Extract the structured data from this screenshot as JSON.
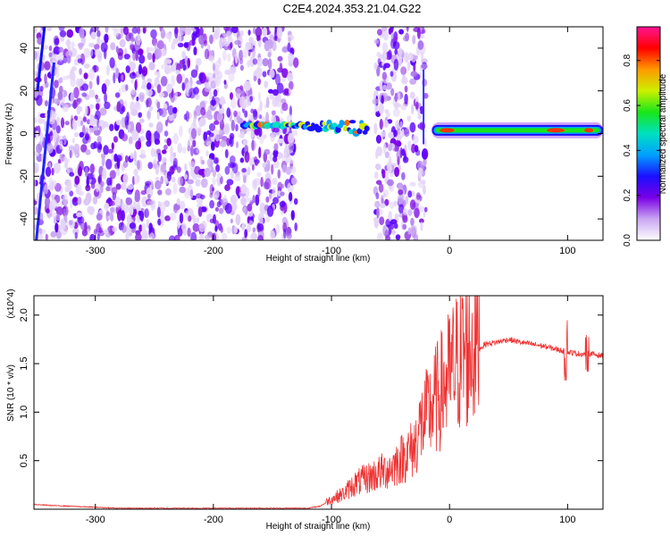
{
  "title": "C2E4.2024.353.21.04.G22",
  "chart_data": [
    {
      "type": "heatmap",
      "xlabel": "Height of straight line (km)",
      "ylabel": "Frequency (Hz)",
      "colorbar_label": "Normalized spectral amplitude",
      "xlim": [
        -352,
        130
      ],
      "ylim": [
        -50,
        50
      ],
      "clim": [
        0,
        0.95
      ],
      "x_ticks": [
        -300,
        -200,
        -100,
        0,
        100
      ],
      "x_tick_labels": [
        "-300",
        "-200",
        "-100",
        "0",
        "100"
      ],
      "y_ticks": [
        -40,
        -20,
        0,
        20,
        40
      ],
      "y_tick_labels": [
        "-40",
        "-20",
        "0",
        "20",
        "40"
      ],
      "colorbar_ticks": [
        0.0,
        0.2,
        0.4,
        0.6,
        0.8
      ],
      "colorbar_tick_labels": [
        "0.0",
        "0.2",
        "0.4",
        "0.6",
        "0.8"
      ],
      "colormap": [
        "#ffffff",
        "#c9a6f2",
        "#7a00e6",
        "#1a10ff",
        "#00a0ff",
        "#00e0c0",
        "#19e619",
        "#ccf000",
        "#ff9900",
        "#ff0000",
        "#ff1493"
      ],
      "noise_regions": [
        [
          -352,
          -130
        ],
        [
          -63,
          -20
        ]
      ],
      "tone_segments": [
        {
          "x": [
            -175,
            -70
          ],
          "freq": 4,
          "amplitude": 0.45
        },
        {
          "x": [
            -15,
            130
          ],
          "freq": 1.5,
          "amplitude": 0.6
        }
      ]
    },
    {
      "type": "line",
      "xlabel": "Height of straight line (km)",
      "ylabel": "SNR (10 * v/v)",
      "y_scale_note": "(x10^4)",
      "xlim": [
        -352,
        130
      ],
      "ylim": [
        0,
        2.2
      ],
      "x_ticks": [
        -300,
        -200,
        -100,
        0,
        100
      ],
      "x_tick_labels": [
        "-300",
        "-200",
        "-100",
        "0",
        "100"
      ],
      "y_ticks": [
        0.5,
        1.0,
        1.5,
        2.0
      ],
      "y_tick_labels": [
        "0.5",
        "1.0",
        "1.5",
        "2.0"
      ],
      "color": "#ee3333",
      "x": [
        -352,
        -340,
        -320,
        -300,
        -280,
        -260,
        -240,
        -220,
        -200,
        -180,
        -160,
        -140,
        -120,
        -110,
        -100,
        -90,
        -80,
        -70,
        -60,
        -50,
        -40,
        -30,
        -25,
        -20,
        -15,
        -10,
        -5,
        0,
        5,
        10,
        15,
        20,
        25,
        30,
        40,
        50,
        60,
        70,
        80,
        90,
        100,
        110,
        120,
        130
      ],
      "y": [
        0.05,
        0.04,
        0.03,
        0.02,
        0.01,
        0.01,
        0.01,
        0.01,
        0.01,
        0.01,
        0.01,
        0.01,
        0.01,
        0.03,
        0.1,
        0.15,
        0.25,
        0.3,
        0.35,
        0.4,
        0.5,
        0.6,
        0.8,
        0.9,
        1.0,
        1.1,
        1.2,
        1.3,
        1.4,
        1.5,
        1.55,
        1.6,
        1.65,
        1.7,
        1.72,
        1.75,
        1.72,
        1.7,
        1.68,
        1.65,
        1.62,
        1.6,
        1.6,
        1.58
      ]
    }
  ]
}
